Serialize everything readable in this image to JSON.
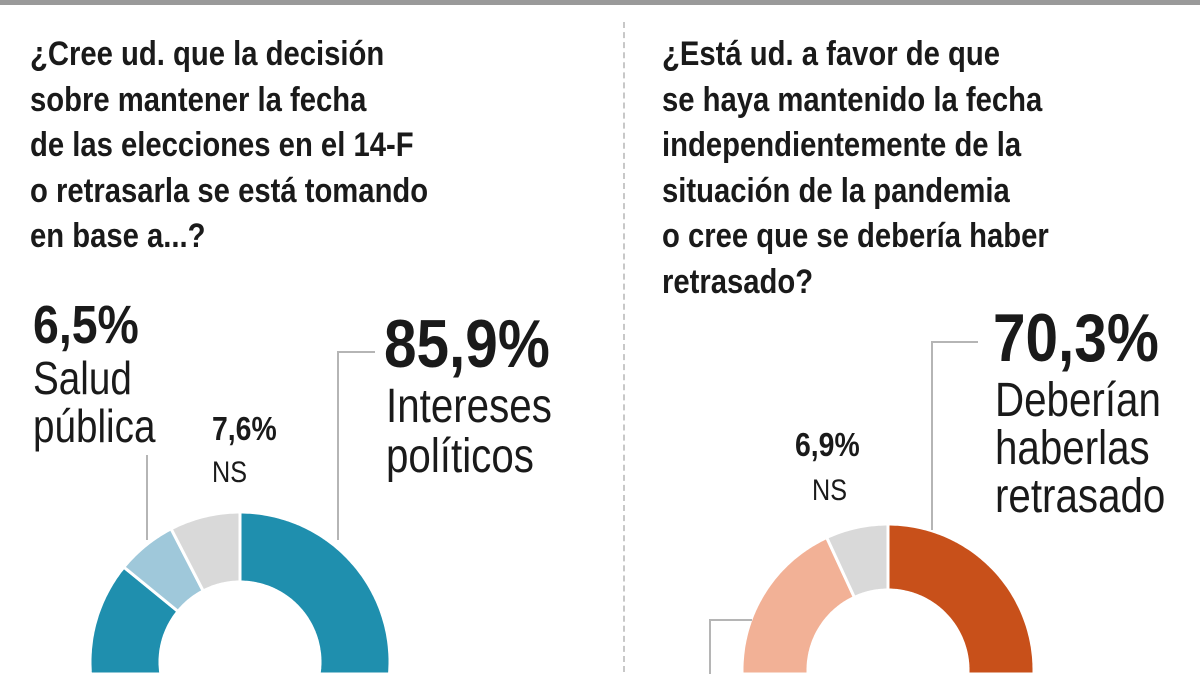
{
  "charts": [
    {
      "title_lines": [
        "¿Cree ud. que la decisión",
        "sobre mantener la fecha",
        "de las elecciones en el 14-F",
        "o retrasarla se está tomando",
        "en base a...?"
      ]
    },
    {
      "title_lines": [
        "¿Está ud. a favor de que",
        "se haya mantenido la fecha",
        "independientemente de la",
        "situación de la pandemia",
        "o cree que se debería haber",
        "retrasado?"
      ]
    }
  ],
  "chart_data": [
    {
      "type": "pie",
      "title": "¿Cree ud. que la decisión sobre mantener la fecha de las elecciones en el 14-F o retrasarla se está tomando en base a...?",
      "slices": [
        {
          "label": "Intereses políticos",
          "value": 85.9,
          "value_label": "85,9%",
          "label_lines": [
            "Intereses",
            "políticos"
          ],
          "color": "#1f8fae"
        },
        {
          "label": "Salud pública",
          "value": 6.5,
          "value_label": "6,5%",
          "label_lines": [
            "Salud",
            "pública"
          ],
          "color": "#9fc8da"
        },
        {
          "label": "NS",
          "value": 7.6,
          "value_label": "7,6%",
          "label_lines": [
            "NS"
          ],
          "color": "#d9d9d9"
        }
      ]
    },
    {
      "type": "pie",
      "title": "¿Está ud. a favor de que se haya mantenido la fecha independientemente de la situación de la pandemia o cree que se debería haber retrasado?",
      "slices": [
        {
          "label": "Deberían haberlas retrasado",
          "value": 70.3,
          "value_label": "70,3%",
          "label_lines": [
            "Deberían",
            "haberlas",
            "retrasado"
          ],
          "color": "#c8501a"
        },
        {
          "label": "",
          "value": 22.8,
          "color": "#f2b196"
        },
        {
          "label": "NS",
          "value": 6.9,
          "value_label": "6,9%",
          "label_lines": [
            "NS"
          ],
          "color": "#d9d9d9"
        }
      ]
    }
  ]
}
